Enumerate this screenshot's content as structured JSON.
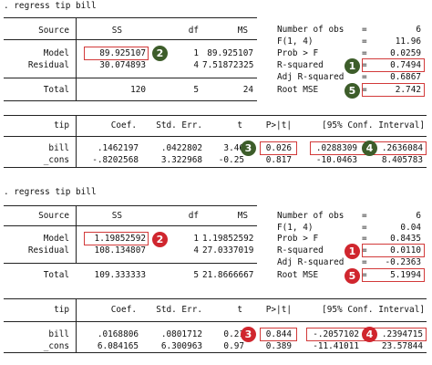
{
  "colors": {
    "green_badge": "#3d5d2a",
    "red_badge": "#d0262e",
    "highlight_box": "#d23a3a"
  },
  "panels": [
    {
      "command": ". regress tip bill",
      "anova": {
        "headers": [
          "Source",
          "SS",
          "df",
          "MS"
        ],
        "rows": [
          {
            "source": "Model",
            "ss": "89.925107",
            "df": "1",
            "ms": "89.925107"
          },
          {
            "source": "Residual",
            "ss": "30.074893",
            "df": "4",
            "ms": "7.51872325"
          }
        ],
        "total": {
          "source": "Total",
          "ss": "120",
          "df": "5",
          "ms": "24"
        }
      },
      "stats": [
        {
          "label": "Number of obs",
          "eq": "=",
          "value": "6"
        },
        {
          "label": "F(1, 4)",
          "eq": "=",
          "value": "11.96"
        },
        {
          "label": "Prob > F",
          "eq": "=",
          "value": "0.0259"
        },
        {
          "label": "R-squared",
          "eq": "=",
          "value": "0.7494"
        },
        {
          "label": "Adj R-squared",
          "eq": "=",
          "value": "0.6867"
        },
        {
          "label": "Root MSE",
          "eq": "=",
          "value": "2.742"
        }
      ],
      "coef": {
        "headers": {
          "dep": "tip",
          "coef": "Coef.",
          "se": "Std. Err.",
          "t": "t",
          "p": "P>|t|",
          "ci": "[95% Conf. Interval]"
        },
        "rows": [
          {
            "var": "bill",
            "coef": ".1462197",
            "se": ".0422802",
            "t": "3.46",
            "p": "0.026",
            "lo": ".0288309",
            "hi": ".2636084"
          },
          {
            "var": "_cons",
            "coef": "-.8202568",
            "se": "3.322968",
            "t": "-0.25",
            "p": "0.817",
            "lo": "-10.0463",
            "hi": "8.405783"
          }
        ]
      },
      "badges": [
        "2",
        "1",
        "5",
        "3",
        "4"
      ]
    },
    {
      "command": ". regress tip bill",
      "anova": {
        "headers": [
          "Source",
          "SS",
          "df",
          "MS"
        ],
        "rows": [
          {
            "source": "Model",
            "ss": "1.19852592",
            "df": "1",
            "ms": "1.19852592"
          },
          {
            "source": "Residual",
            "ss": "108.134807",
            "df": "4",
            "ms": "27.0337019"
          }
        ],
        "total": {
          "source": "Total",
          "ss": "109.333333",
          "df": "5",
          "ms": "21.8666667"
        }
      },
      "stats": [
        {
          "label": "Number of obs",
          "eq": "=",
          "value": "6"
        },
        {
          "label": "F(1, 4)",
          "eq": "=",
          "value": "0.04"
        },
        {
          "label": "Prob > F",
          "eq": "=",
          "value": "0.8435"
        },
        {
          "label": "R-squared",
          "eq": "=",
          "value": "0.0110"
        },
        {
          "label": "Adj R-squared",
          "eq": "=",
          "value": "-0.2363"
        },
        {
          "label": "Root MSE",
          "eq": "=",
          "value": "5.1994"
        }
      ],
      "coef": {
        "headers": {
          "dep": "tip",
          "coef": "Coef.",
          "se": "Std. Err.",
          "t": "t",
          "p": "P>|t|",
          "ci": "[95% Conf. Interval]"
        },
        "rows": [
          {
            "var": "bill",
            "coef": ".0168806",
            "se": ".0801712",
            "t": "0.21",
            "p": "0.844",
            "lo": "-.2057102",
            "hi": ".2394715"
          },
          {
            "var": "_cons",
            "coef": "6.084165",
            "se": "6.300963",
            "t": "0.97",
            "p": "0.389",
            "lo": "-11.41011",
            "hi": "23.57844"
          }
        ]
      },
      "badges": [
        "2",
        "1",
        "5",
        "3",
        "4"
      ]
    }
  ]
}
